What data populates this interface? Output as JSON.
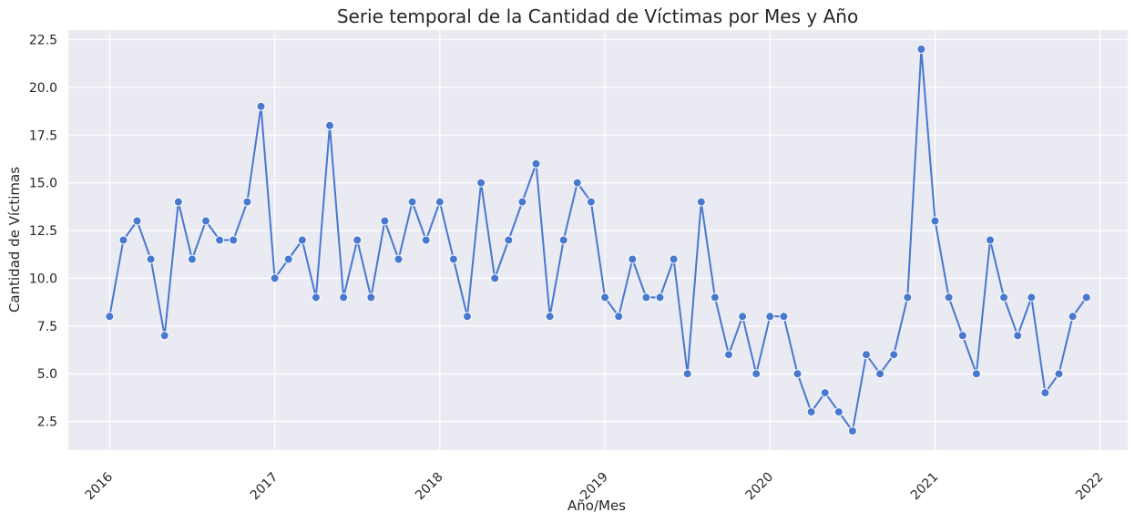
{
  "chart_data": {
    "type": "line",
    "title": "Serie temporal de la Cantidad de Víctimas por Mes y Año",
    "xlabel": "Año/Mes",
    "ylabel": "Cantidad de Víctimas",
    "x_ticks": [
      "2016",
      "2017",
      "2018",
      "2019",
      "2020",
      "2021",
      "2022"
    ],
    "y_ticks": [
      "2.5",
      "5.0",
      "7.5",
      "10.0",
      "12.5",
      "15.0",
      "17.5",
      "20.0",
      "22.5"
    ],
    "ylim": [
      1,
      23
    ],
    "xlim": [
      "2015-10",
      "2022-03"
    ],
    "grid": true,
    "marker": "circle",
    "colors": {
      "line": "#4878cf",
      "background": "#eaeaf2",
      "grid": "#ffffff"
    },
    "series": [
      {
        "x": [
          "2016-01",
          "2016-02",
          "2016-03",
          "2016-04",
          "2016-05",
          "2016-06",
          "2016-07",
          "2016-08",
          "2016-09",
          "2016-10",
          "2016-11",
          "2016-12",
          "2017-01",
          "2017-02",
          "2017-03",
          "2017-04",
          "2017-05",
          "2017-06",
          "2017-07",
          "2017-08",
          "2017-09",
          "2017-10",
          "2017-11",
          "2017-12",
          "2018-01",
          "2018-02",
          "2018-03",
          "2018-04",
          "2018-05",
          "2018-06",
          "2018-07",
          "2018-08",
          "2018-09",
          "2018-10",
          "2018-11",
          "2018-12",
          "2019-01",
          "2019-02",
          "2019-03",
          "2019-04",
          "2019-05",
          "2019-06",
          "2019-07",
          "2019-08",
          "2019-09",
          "2019-10",
          "2019-11",
          "2019-12",
          "2020-01",
          "2020-02",
          "2020-03",
          "2020-04",
          "2020-05",
          "2020-06",
          "2020-07",
          "2020-08",
          "2020-09",
          "2020-10",
          "2020-11",
          "2020-12",
          "2021-01",
          "2021-02",
          "2021-03",
          "2021-04",
          "2021-05",
          "2021-06",
          "2021-07",
          "2021-08",
          "2021-09",
          "2021-10",
          "2021-11",
          "2021-12"
        ],
        "values": [
          8,
          12,
          13,
          11,
          7,
          14,
          11,
          13,
          12,
          12,
          14,
          19,
          10,
          11,
          12,
          9,
          18,
          9,
          12,
          9,
          13,
          11,
          14,
          12,
          14,
          11,
          8,
          15,
          10,
          12,
          14,
          16,
          8,
          12,
          15,
          14,
          9,
          8,
          11,
          9,
          9,
          11,
          5,
          14,
          9,
          6,
          8,
          5,
          8,
          8,
          5,
          3,
          4,
          3,
          2,
          6,
          5,
          6,
          9,
          22,
          13,
          9,
          7,
          5,
          12,
          9,
          7,
          9,
          4,
          5,
          8,
          9
        ]
      }
    ]
  }
}
